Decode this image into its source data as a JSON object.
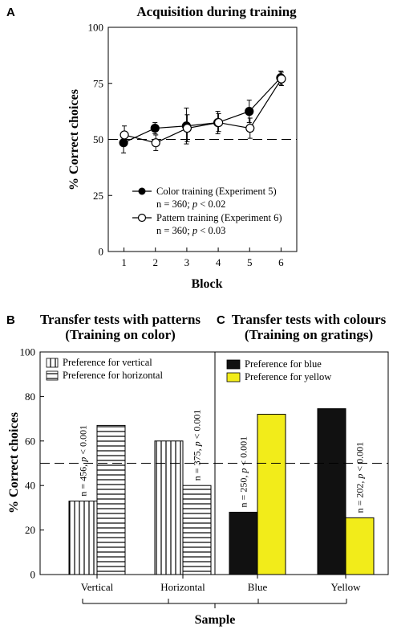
{
  "chart_data": [
    {
      "panel": "A",
      "type": "line",
      "title": "Acquisition during training",
      "xlabel": "Block",
      "ylabel": "% Correct choices",
      "x": [
        1,
        2,
        3,
        4,
        5,
        6
      ],
      "xlim": [
        0.5,
        6.5
      ],
      "ylim": [
        0,
        100
      ],
      "yticks": [
        0,
        25,
        50,
        75,
        100
      ],
      "chance_line": 50,
      "series": [
        {
          "legend": "Color training  (Experiment 5)",
          "stat_n": "n = 360;",
          "stat_p": "p",
          "stat_rest": " < 0.02",
          "marker": "filled-circle",
          "values": [
            48.5,
            55,
            56,
            57.5,
            62.5,
            77.5
          ],
          "errors": [
            4.5,
            2.5,
            8,
            5,
            5,
            3
          ]
        },
        {
          "legend": "Pattern training (Experiment 6)",
          "stat_n": "n = 360;",
          "stat_p": "p",
          "stat_rest": " < 0.03",
          "marker": "open-circle",
          "values": [
            52,
            48.5,
            55,
            57.5,
            55,
            77
          ],
          "errors": [
            4,
            3.5,
            6,
            4,
            4.5,
            3
          ]
        }
      ]
    },
    {
      "panel": "B",
      "type": "bar",
      "title_lines": [
        "Transfer tests with patterns",
        "(Training on color)"
      ],
      "ylabel": "% Correct choices",
      "ylim": [
        0,
        100
      ],
      "yticks": [
        0,
        20,
        40,
        60,
        80,
        100
      ],
      "chance_line": 50,
      "categories": [
        "Vertical",
        "Horizontal"
      ],
      "series": [
        {
          "name": "Preference for vertical",
          "pattern": "vertical-stripes",
          "values": [
            33,
            60
          ]
        },
        {
          "name": "Preference for horizontal",
          "pattern": "horizontal-stripes",
          "values": [
            67,
            40
          ]
        }
      ],
      "annotations": [
        {
          "n": "n = 456, ",
          "p": "p",
          "rest": "< 0.001"
        },
        {
          "n": "n = 375, ",
          "p": "p",
          "rest": "< 0.001"
        }
      ]
    },
    {
      "panel": "C",
      "type": "bar",
      "title_lines": [
        "Transfer tests with colours",
        "(Training on gratings)"
      ],
      "ylim": [
        0,
        100
      ],
      "chance_line": 50,
      "categories": [
        "Blue",
        "Yellow"
      ],
      "series": [
        {
          "name": "Preference for blue",
          "color": "#111111",
          "values": [
            28,
            74.5
          ]
        },
        {
          "name": "Preference for yellow",
          "color": "#f2ec1a",
          "values": [
            72,
            25.5
          ]
        }
      ],
      "annotations": [
        {
          "n": "n = 250, ",
          "p": "p",
          "rest": "< 0.001"
        },
        {
          "n": "n = 202, ",
          "p": "p",
          "rest": "< 0.001"
        }
      ]
    }
  ],
  "shared": {
    "bottom_xlabel": "Sample"
  }
}
